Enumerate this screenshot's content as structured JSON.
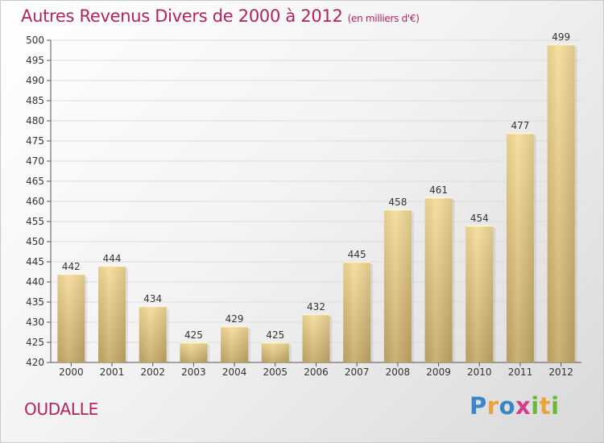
{
  "chart_data": {
    "type": "bar",
    "title": "Autres Revenus Divers de 2000 à 2012",
    "subtitle": "(en milliers d'€)",
    "categories": [
      "2000",
      "2001",
      "2002",
      "2003",
      "2004",
      "2005",
      "2006",
      "2007",
      "2008",
      "2009",
      "2010",
      "2011",
      "2012"
    ],
    "values": [
      442,
      444,
      434,
      425,
      429,
      425,
      432,
      445,
      458,
      461,
      454,
      477,
      499
    ],
    "ylim": [
      420,
      500
    ],
    "yticks": [
      420,
      425,
      430,
      435,
      440,
      445,
      450,
      455,
      460,
      465,
      470,
      475,
      480,
      485,
      490,
      495,
      500
    ],
    "grid": true,
    "colors": {
      "bar_light": "#f5dc98",
      "bar_dark": "#c9ad6c",
      "grid": "#dcdcdc",
      "axis": "#555555"
    }
  },
  "footer": {
    "town": "OUDALLE"
  },
  "logo": {
    "letters": [
      "P",
      "r",
      "o",
      "x",
      "i",
      "t",
      "i"
    ],
    "colors": [
      "#3a86c8",
      "#e8a33a",
      "#3a86c8",
      "#d43c8c",
      "#6cb83a",
      "#e8a33a",
      "#6cb83a"
    ]
  }
}
